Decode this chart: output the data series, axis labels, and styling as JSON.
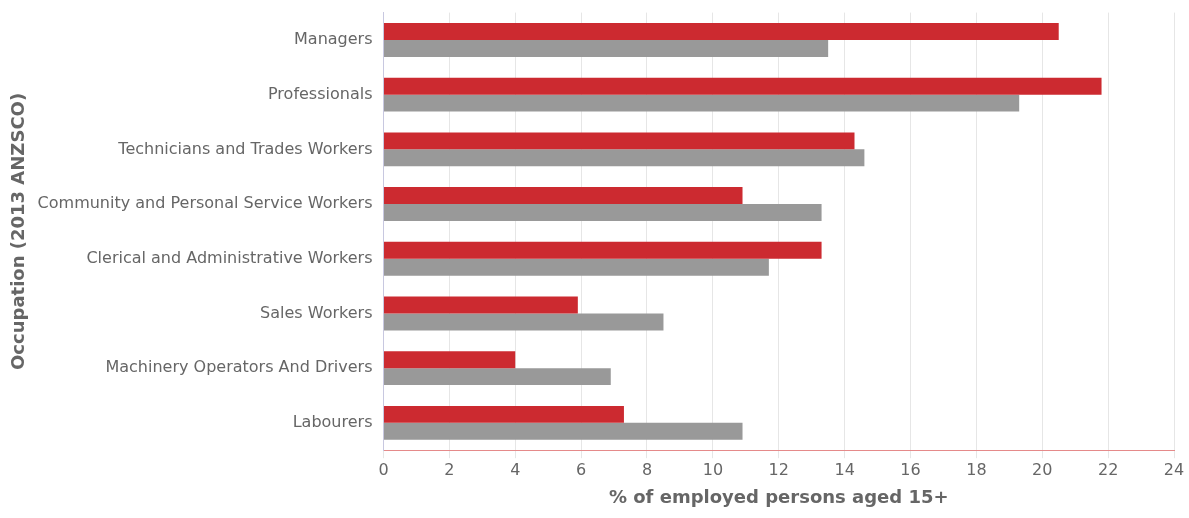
{
  "chart_data": {
    "type": "bar",
    "orientation": "horizontal",
    "xlabel": "% of employed persons aged 15+",
    "ylabel": "Occupation (2013 ANZSCO)",
    "categories": [
      "Managers",
      "Professionals",
      "Technicians and Trades Workers",
      "Community and Personal Service Workers",
      "Clerical and Administrative Workers",
      "Sales Workers",
      "Machinery Operators And Drivers",
      "Labourers"
    ],
    "series": [
      {
        "color": "#cc2a30",
        "values": [
          20.5,
          21.8,
          14.3,
          10.9,
          13.3,
          5.9,
          4.0,
          7.3
        ]
      },
      {
        "color": "#999999",
        "values": [
          13.5,
          19.3,
          14.6,
          13.3,
          11.7,
          8.5,
          6.9,
          10.9
        ]
      }
    ],
    "xlim": [
      0,
      24
    ],
    "xticks": [
      0,
      2,
      4,
      6,
      8,
      10,
      12,
      14,
      16,
      18,
      20,
      22,
      24
    ],
    "grid": "x",
    "legend": false
  }
}
